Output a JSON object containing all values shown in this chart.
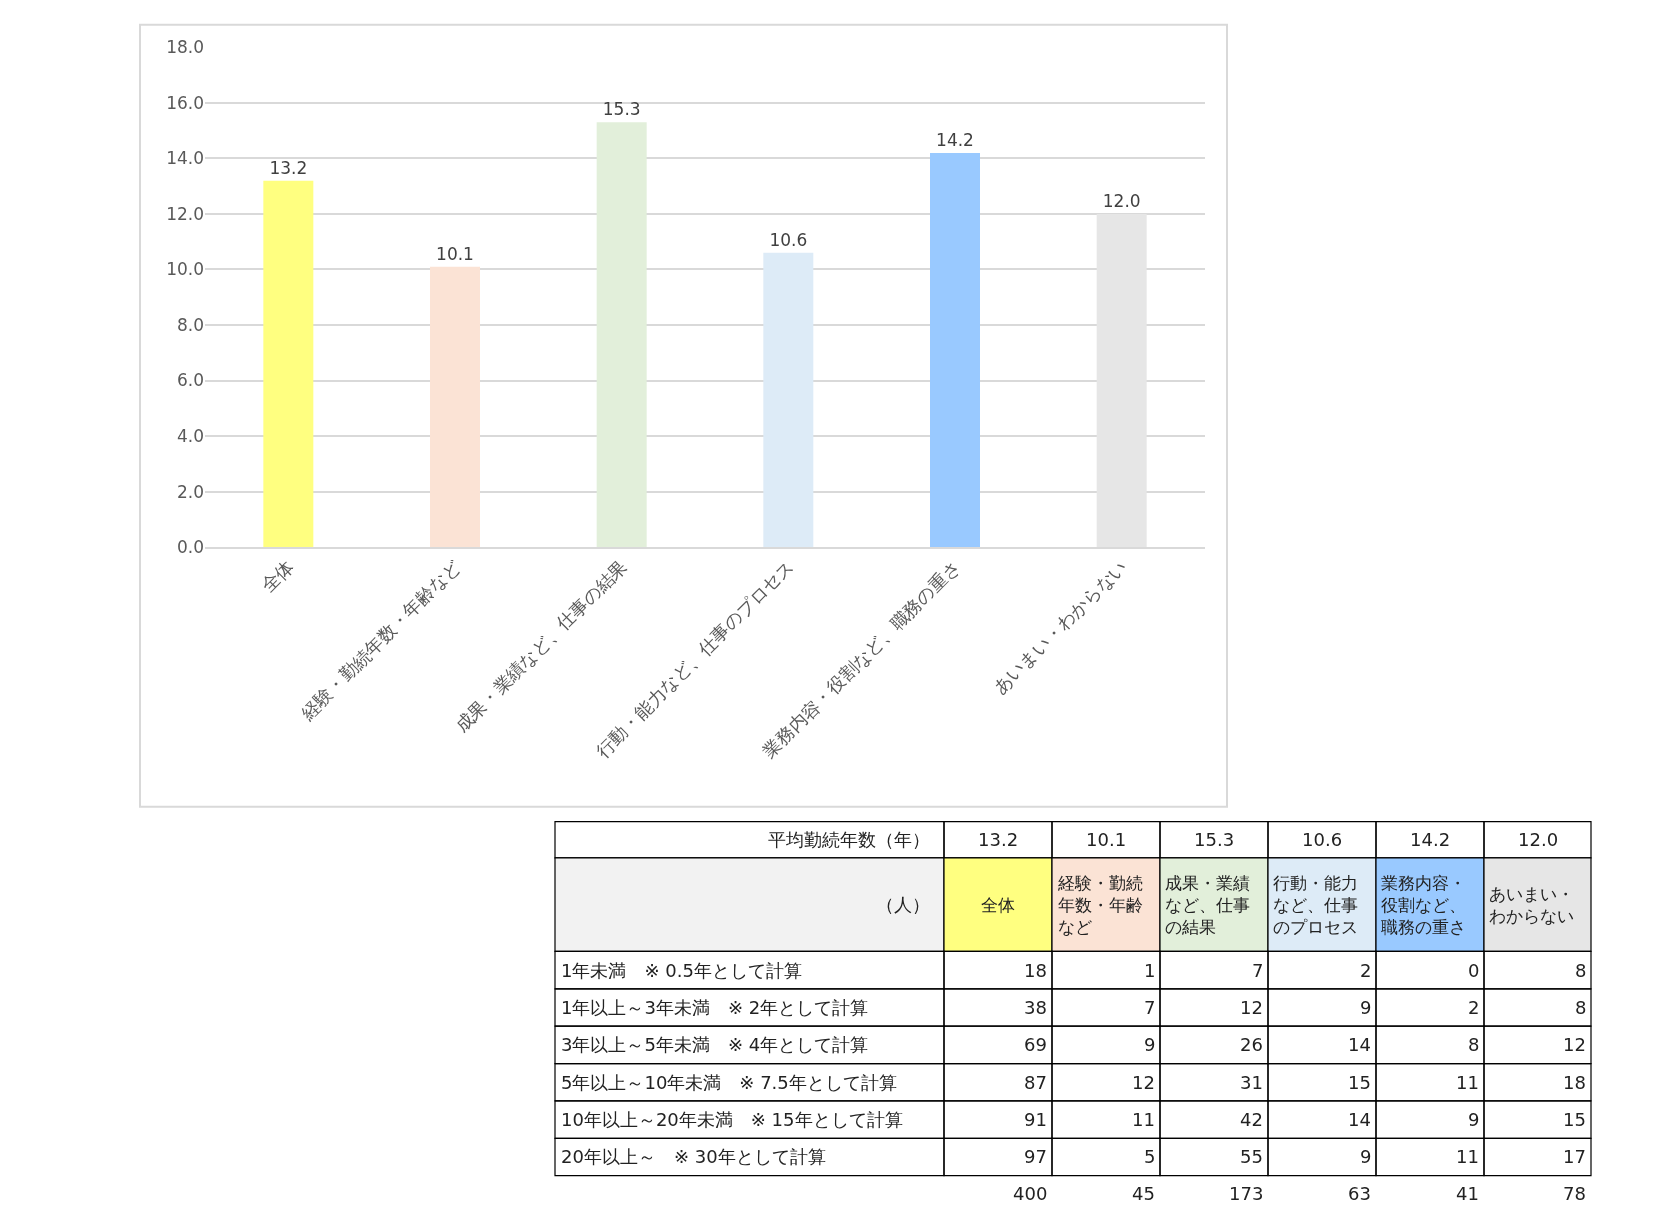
{
  "chart_data": [
    {
      "type": "bar",
      "categories": [
        "全体",
        "経験・勤続年数・年齢など",
        "成果・業績など、仕事の結果",
        "行動・能力など、仕事のプロセス",
        "業務内容・役割など、職務の重さ",
        "あいまい・わからない"
      ],
      "values": [
        13.2,
        10.1,
        15.3,
        10.6,
        14.2,
        12.0
      ],
      "value_labels": [
        "13.2",
        "10.1",
        "15.3",
        "10.6",
        "14.2",
        "12.0"
      ],
      "colors": [
        "#ffff80",
        "#fbe3d5",
        "#e2efda",
        "#ddebf7",
        "#99c9ff",
        "#e6e6e6"
      ],
      "ylim": [
        0,
        18
      ],
      "yticks": [
        {
          "value": 0,
          "label": "0.0"
        },
        {
          "value": 2,
          "label": "2.0"
        },
        {
          "value": 4,
          "label": "4.0"
        },
        {
          "value": 6,
          "label": "6.0"
        },
        {
          "value": 8,
          "label": "8.0"
        },
        {
          "value": 10,
          "label": "10.0"
        },
        {
          "value": 12,
          "label": "12.0"
        },
        {
          "value": 14,
          "label": "14.0"
        },
        {
          "value": 16,
          "label": "16.0"
        },
        {
          "value": 18,
          "label": "18.0"
        }
      ],
      "grid": "y",
      "annotations": [
        "平均勤続年数（年）"
      ]
    },
    {
      "type": "heatmap",
      "categories": [
        "全体",
        "経験・勤続年数・年齢など",
        "成果・業績など、仕事の結果",
        "行動・能力など、仕事のプロセス",
        "業務内容・役割など、職務の重さ",
        "あいまい・わからない"
      ],
      "colors": [
        "#ffff80",
        "#fbe3d5",
        "#e2efda",
        "#ddebf7",
        "#99c9ff",
        "#e6e6e6"
      ],
      "y_categories": [
        "1年未満　※ 0.5年として計算",
        "1年以上～3年未満　※ 2年として計算",
        "3年以上～5年未満　※ 4年として計算",
        "5年以上～10年未満　※ 7.5年として計算",
        "10年以上～20年未満　※ 15年として計算",
        "20年以上～　※ 30年として計算"
      ],
      "cells": [
        [
          18,
          1,
          7,
          2,
          0,
          8
        ],
        [
          38,
          7,
          12,
          9,
          2,
          8
        ],
        [
          69,
          9,
          26,
          14,
          8,
          12
        ],
        [
          87,
          12,
          31,
          15,
          11,
          18
        ],
        [
          91,
          11,
          42,
          14,
          9,
          15
        ],
        [
          97,
          5,
          55,
          9,
          11,
          17
        ]
      ],
      "data_labels": true,
      "totals": [
        "400",
        "45",
        "173",
        "63",
        "41",
        "78"
      ],
      "annotations": [
        "（人）"
      ]
    }
  ]
}
